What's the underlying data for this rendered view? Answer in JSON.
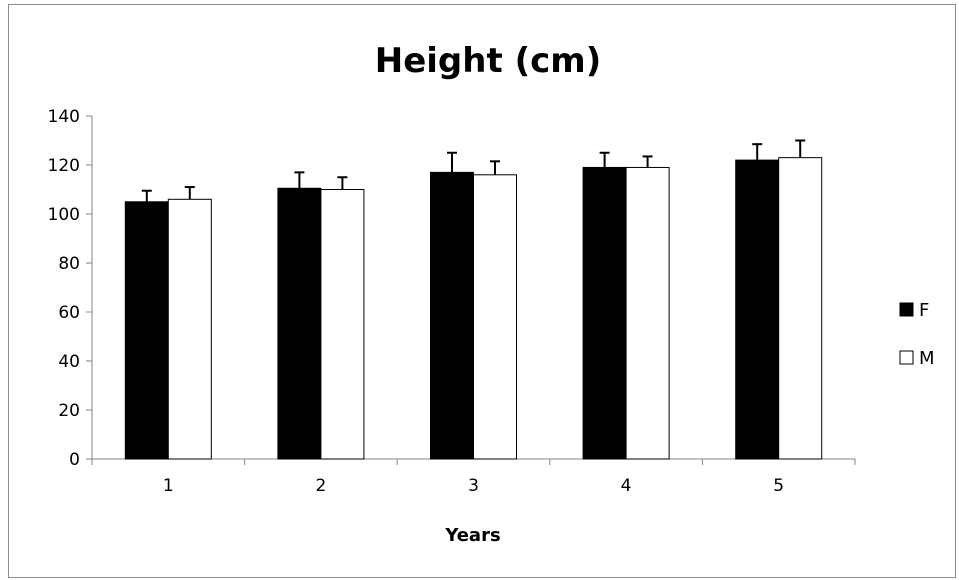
{
  "chart_data": {
    "type": "bar",
    "title": "Height (cm)",
    "xlabel": "Years",
    "ylabel": "",
    "categories": [
      "1",
      "2",
      "3",
      "4",
      "5"
    ],
    "ylim": [
      0,
      140
    ],
    "yticks": [
      0,
      20,
      40,
      60,
      80,
      100,
      120,
      140
    ],
    "grid": false,
    "legend_position": "right",
    "series": [
      {
        "name": "F",
        "values": [
          105,
          110.5,
          117,
          119,
          122
        ],
        "error": [
          4.5,
          6.5,
          8,
          6,
          6.5
        ],
        "color": "#000000"
      },
      {
        "name": "M",
        "values": [
          106,
          110,
          116,
          119,
          123
        ],
        "error": [
          5,
          5,
          5.5,
          4.5,
          7
        ],
        "color": "#ffffff"
      }
    ]
  }
}
